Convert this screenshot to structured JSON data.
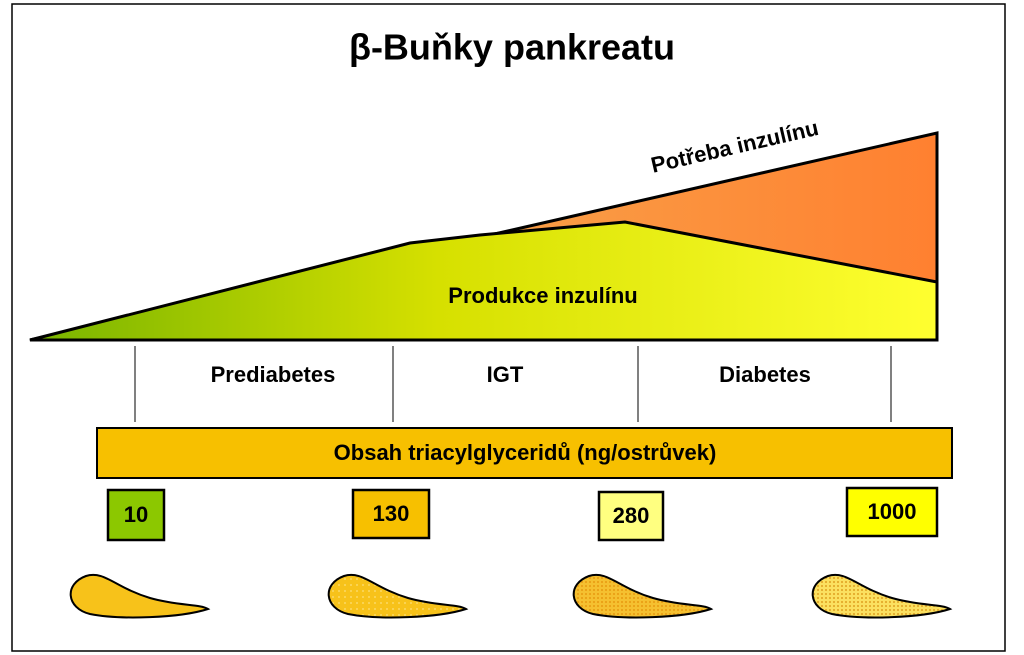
{
  "title": "β-Buňky pankreatu",
  "demand_label": "Potřeba inzulínu",
  "production_label": "Produkce inzulínu",
  "stages": [
    "Prediabetes",
    "IGT",
    "Diabetes"
  ],
  "bar_label": "Obsah triacylglyceridů (ng/ostrůvek)",
  "tg_values": [
    10,
    130,
    280,
    1000
  ]
}
